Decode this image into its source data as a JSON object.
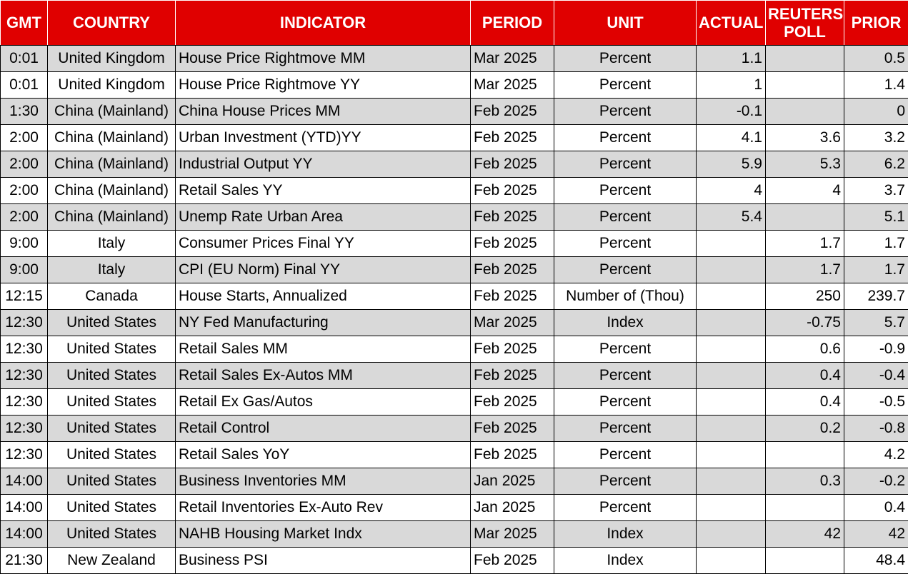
{
  "headers": {
    "gmt": "GMT",
    "country": "COUNTRY",
    "indicator": "INDICATOR",
    "period": "PERIOD",
    "unit": "UNIT",
    "actual": "ACTUAL",
    "poll": "REUTERS POLL",
    "prior": "PRIOR"
  },
  "rows": [
    {
      "gmt": "0:01",
      "country": "United Kingdom",
      "indicator": "House Price Rightmove MM",
      "period": "Mar 2025",
      "unit": "Percent",
      "actual": "1.1",
      "poll": "",
      "prior": "0.5"
    },
    {
      "gmt": "0:01",
      "country": "United Kingdom",
      "indicator": "House Price Rightmove YY",
      "period": "Mar 2025",
      "unit": "Percent",
      "actual": "1",
      "poll": "",
      "prior": "1.4"
    },
    {
      "gmt": "1:30",
      "country": "China (Mainland)",
      "indicator": "China House Prices MM",
      "period": "Feb 2025",
      "unit": "Percent",
      "actual": "-0.1",
      "poll": "",
      "prior": "0"
    },
    {
      "gmt": "2:00",
      "country": "China (Mainland)",
      "indicator": "Urban Investment (YTD)YY",
      "period": "Feb 2025",
      "unit": "Percent",
      "actual": "4.1",
      "poll": "3.6",
      "prior": "3.2"
    },
    {
      "gmt": "2:00",
      "country": "China (Mainland)",
      "indicator": "Industrial Output YY",
      "period": "Feb 2025",
      "unit": "Percent",
      "actual": "5.9",
      "poll": "5.3",
      "prior": "6.2"
    },
    {
      "gmt": "2:00",
      "country": "China (Mainland)",
      "indicator": "Retail Sales YY",
      "period": "Feb 2025",
      "unit": "Percent",
      "actual": "4",
      "poll": "4",
      "prior": "3.7"
    },
    {
      "gmt": "2:00",
      "country": "China (Mainland)",
      "indicator": "Unemp Rate Urban Area",
      "period": "Feb 2025",
      "unit": "Percent",
      "actual": "5.4",
      "poll": "",
      "prior": "5.1"
    },
    {
      "gmt": "9:00",
      "country": "Italy",
      "indicator": "Consumer Prices Final YY",
      "period": "Feb 2025",
      "unit": "Percent",
      "actual": "",
      "poll": "1.7",
      "prior": "1.7"
    },
    {
      "gmt": "9:00",
      "country": "Italy",
      "indicator": "CPI (EU Norm) Final YY",
      "period": "Feb 2025",
      "unit": "Percent",
      "actual": "",
      "poll": "1.7",
      "prior": "1.7"
    },
    {
      "gmt": "12:15",
      "country": "Canada",
      "indicator": "House Starts, Annualized",
      "period": "Feb 2025",
      "unit": "Number of (Thou)",
      "actual": "",
      "poll": "250",
      "prior": "239.7"
    },
    {
      "gmt": "12:30",
      "country": "United States",
      "indicator": "NY Fed Manufacturing",
      "period": "Mar 2025",
      "unit": "Index",
      "actual": "",
      "poll": "-0.75",
      "prior": "5.7"
    },
    {
      "gmt": "12:30",
      "country": "United States",
      "indicator": "Retail Sales MM",
      "period": "Feb 2025",
      "unit": "Percent",
      "actual": "",
      "poll": "0.6",
      "prior": "-0.9"
    },
    {
      "gmt": "12:30",
      "country": "United States",
      "indicator": "Retail Sales Ex-Autos MM",
      "period": "Feb 2025",
      "unit": "Percent",
      "actual": "",
      "poll": "0.4",
      "prior": "-0.4"
    },
    {
      "gmt": "12:30",
      "country": "United States",
      "indicator": "Retail Ex Gas/Autos",
      "period": "Feb 2025",
      "unit": "Percent",
      "actual": "",
      "poll": "0.4",
      "prior": "-0.5"
    },
    {
      "gmt": "12:30",
      "country": "United States",
      "indicator": "Retail Control",
      "period": "Feb 2025",
      "unit": "Percent",
      "actual": "",
      "poll": "0.2",
      "prior": "-0.8"
    },
    {
      "gmt": "12:30",
      "country": "United States",
      "indicator": "Retail Sales YoY",
      "period": "Feb 2025",
      "unit": "Percent",
      "actual": "",
      "poll": "",
      "prior": "4.2"
    },
    {
      "gmt": "14:00",
      "country": "United States",
      "indicator": "Business Inventories MM",
      "period": "Jan 2025",
      "unit": "Percent",
      "actual": "",
      "poll": "0.3",
      "prior": "-0.2"
    },
    {
      "gmt": "14:00",
      "country": "United States",
      "indicator": "Retail Inventories Ex-Auto Rev",
      "period": "Jan 2025",
      "unit": "Percent",
      "actual": "",
      "poll": "",
      "prior": "0.4"
    },
    {
      "gmt": "14:00",
      "country": "United States",
      "indicator": "NAHB Housing Market Indx",
      "period": "Mar 2025",
      "unit": "Index",
      "actual": "",
      "poll": "42",
      "prior": "42"
    },
    {
      "gmt": "21:30",
      "country": "New Zealand",
      "indicator": "Business PSI",
      "period": "Feb 2025",
      "unit": "Index",
      "actual": "",
      "poll": "",
      "prior": "48.4"
    }
  ],
  "colors": {
    "header_bg": "#e00000",
    "header_text": "#ffffff",
    "alt_row_bg": "#d9d9d9",
    "row_bg": "#ffffff"
  }
}
